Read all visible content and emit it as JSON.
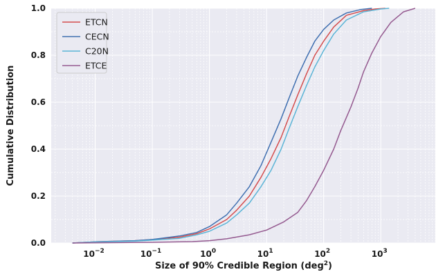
{
  "chart_data": {
    "type": "line",
    "title": "",
    "xlabel": "Size of 90% Credible Region (deg²)",
    "xlabel_main": "Size of 90% Credible Region (deg",
    "xlabel_sup": "2",
    "xlabel_tail": ")",
    "ylabel": "Cumulative Distribution",
    "xscale": "log",
    "xlim": [
      0.0017,
      9000
    ],
    "ylim": [
      0.0,
      1.0
    ],
    "grid": true,
    "legend_position": "top-left",
    "background": "#eaeaf2",
    "x_ticks": [
      {
        "base": "10",
        "exp": "−2",
        "value": 0.01
      },
      {
        "base": "10",
        "exp": "−1",
        "value": 0.1
      },
      {
        "base": "10",
        "exp": "0",
        "value": 1
      },
      {
        "base": "10",
        "exp": "1",
        "value": 10
      },
      {
        "base": "10",
        "exp": "2",
        "value": 100
      },
      {
        "base": "10",
        "exp": "3",
        "value": 1000
      }
    ],
    "y_ticks": [
      "0.0",
      "0.2",
      "0.4",
      "0.6",
      "0.8",
      "1.0"
    ],
    "series": [
      {
        "name": "ETCN",
        "color": "#d44d4d",
        "x": [
          0.004,
          0.01,
          0.05,
          0.1,
          0.3,
          0.6,
          1,
          2,
          3,
          5,
          8,
          12,
          18,
          25,
          35,
          50,
          70,
          100,
          150,
          250,
          500,
          800,
          1200
        ],
        "y": [
          0.0,
          0.005,
          0.01,
          0.015,
          0.025,
          0.04,
          0.06,
          0.1,
          0.14,
          0.2,
          0.28,
          0.36,
          0.45,
          0.54,
          0.63,
          0.72,
          0.8,
          0.86,
          0.92,
          0.97,
          0.99,
          0.997,
          1.0
        ]
      },
      {
        "name": "CECN",
        "color": "#3f6fb0",
        "x": [
          0.004,
          0.01,
          0.05,
          0.1,
          0.3,
          0.6,
          1,
          2,
          3,
          5,
          8,
          12,
          18,
          25,
          35,
          50,
          70,
          100,
          150,
          250,
          450,
          700
        ],
        "y": [
          0.0,
          0.005,
          0.01,
          0.015,
          0.03,
          0.045,
          0.07,
          0.12,
          0.17,
          0.24,
          0.33,
          0.43,
          0.53,
          0.62,
          0.71,
          0.79,
          0.86,
          0.91,
          0.95,
          0.98,
          0.995,
          1.0
        ]
      },
      {
        "name": "C20N",
        "color": "#5ab4d6",
        "x": [
          0.004,
          0.01,
          0.05,
          0.1,
          0.3,
          0.6,
          1,
          2,
          3,
          5,
          8,
          12,
          18,
          25,
          35,
          50,
          70,
          100,
          150,
          250,
          500,
          1000,
          1400
        ],
        "y": [
          0.0,
          0.004,
          0.008,
          0.012,
          0.02,
          0.035,
          0.05,
          0.085,
          0.12,
          0.17,
          0.24,
          0.31,
          0.4,
          0.49,
          0.58,
          0.67,
          0.75,
          0.82,
          0.89,
          0.95,
          0.985,
          0.997,
          1.0
        ]
      },
      {
        "name": "ETCE",
        "color": "#94598f",
        "x": [
          0.004,
          0.1,
          0.5,
          1,
          2,
          5,
          10,
          20,
          35,
          50,
          70,
          100,
          150,
          200,
          300,
          400,
          500,
          700,
          1000,
          1500,
          2500,
          4000
        ],
        "y": [
          0.0,
          0.003,
          0.006,
          0.01,
          0.018,
          0.035,
          0.055,
          0.09,
          0.13,
          0.18,
          0.24,
          0.31,
          0.4,
          0.48,
          0.58,
          0.66,
          0.73,
          0.81,
          0.88,
          0.94,
          0.985,
          1.0
        ]
      }
    ]
  }
}
